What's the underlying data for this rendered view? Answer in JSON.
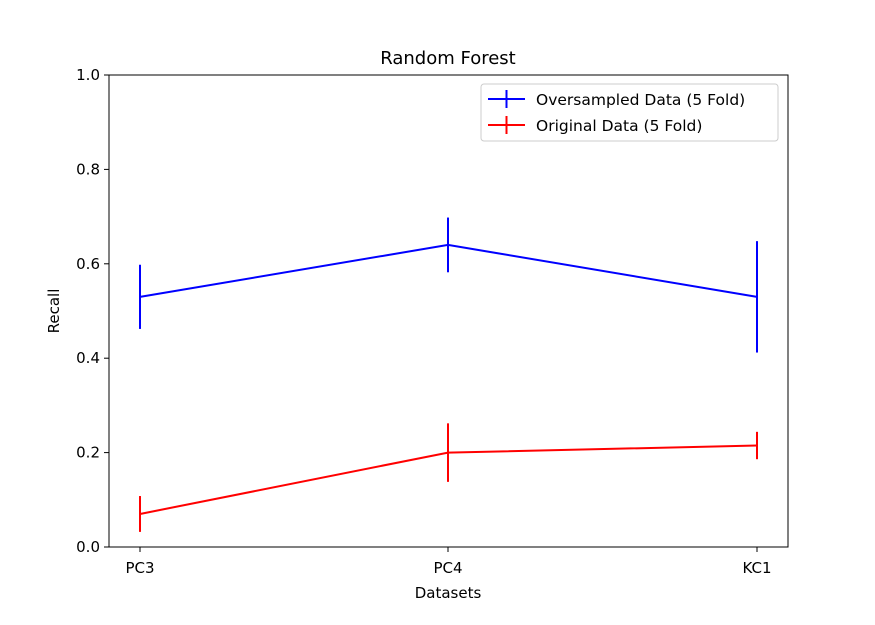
{
  "chart_data": {
    "type": "line",
    "title": "Random Forest",
    "xlabel": "Datasets",
    "ylabel": "Recall",
    "categories": [
      "PC3",
      "PC4",
      "KC1"
    ],
    "ylim": [
      0.0,
      1.0
    ],
    "yticks": [
      "0.0",
      "0.2",
      "0.4",
      "0.6",
      "0.8",
      "1.0"
    ],
    "grid": false,
    "legend_position": "top-right",
    "series": [
      {
        "name": "Oversampled Data (5 Fold)",
        "color": "#0000ff",
        "values": [
          0.53,
          0.64,
          0.53
        ],
        "errors": [
          0.068,
          0.058,
          0.118
        ]
      },
      {
        "name": "Original Data (5 Fold)",
        "color": "#ff0000",
        "values": [
          0.07,
          0.2,
          0.215
        ],
        "errors": [
          0.038,
          0.062,
          0.029
        ]
      }
    ]
  }
}
